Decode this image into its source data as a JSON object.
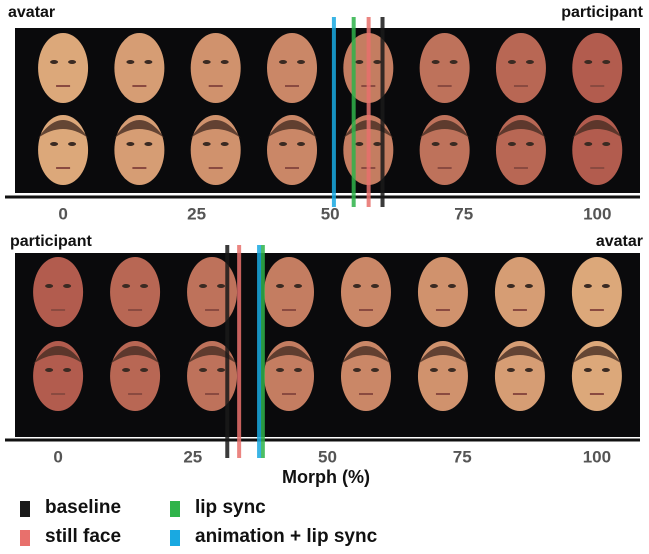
{
  "chart_data": [
    {
      "type": "morph-strip",
      "left_label": "avatar",
      "right_label": "participant",
      "xlim": [
        -9,
        108
      ],
      "xticks": [
        0,
        25,
        50,
        75,
        100
      ],
      "series": [
        {
          "name": "baseline",
          "color": "#1a1a1a",
          "values": [
            59.8
          ]
        },
        {
          "name": "still face",
          "color": "#e8706c",
          "values": [
            57.2
          ]
        },
        {
          "name": "lip sync",
          "color": "#2fb34a",
          "values": [
            54.4
          ]
        },
        {
          "name": "animation + lip sync",
          "color": "#19a9e1",
          "values": [
            50.7
          ]
        }
      ]
    },
    {
      "type": "morph-strip",
      "left_label": "participant",
      "right_label": "avatar",
      "x_label": "Morph (%)",
      "xlim": [
        -8,
        108
      ],
      "xticks": [
        0,
        25,
        50,
        75,
        100
      ],
      "series": [
        {
          "name": "baseline",
          "color": "#1a1a1a",
          "values": [
            31.4
          ]
        },
        {
          "name": "still face",
          "color": "#e8706c",
          "values": [
            33.6
          ]
        },
        {
          "name": "lip sync",
          "color": "#2fb34a",
          "values": [
            38.0
          ]
        },
        {
          "name": "animation + lip sync",
          "color": "#19a9e1",
          "values": [
            37.3
          ]
        }
      ]
    }
  ]
}
